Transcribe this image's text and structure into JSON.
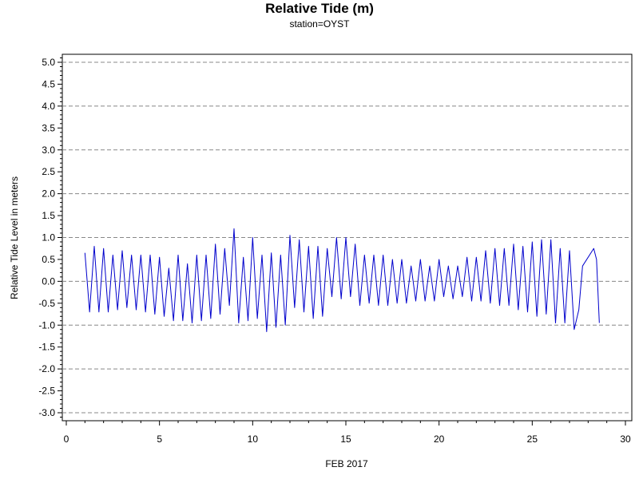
{
  "chart_data": {
    "type": "line",
    "title": "Relative Tide (m)",
    "subtitle": "station=OYST",
    "xlabel": "FEB 2017",
    "ylabel": "Relative Tide Level in meters",
    "xlim": [
      0,
      30
    ],
    "ylim": [
      -3.2,
      5.2
    ],
    "x_ticks": [
      0,
      5,
      10,
      15,
      20,
      25,
      30
    ],
    "y_ticks": [
      5.0,
      4.5,
      4.0,
      3.5,
      3.0,
      2.5,
      2.0,
      1.5,
      1.0,
      0.5,
      0.0,
      -0.5,
      -1.0,
      -1.5,
      -2.0,
      -2.5,
      -3.0
    ],
    "y_tick_labels": [
      "5.0",
      "4.5",
      "4.0",
      "3.5",
      "3.0",
      "2.5",
      "2.0",
      "1.5",
      "1.0",
      "0.5",
      "0.0",
      "-0.5",
      "-1.0",
      "-1.5",
      "-2.0",
      "-2.5",
      "-3.0"
    ],
    "y_gridlines": [
      5.0,
      4.0,
      3.0,
      2.0,
      1.0,
      0.0,
      -1.0,
      -2.0,
      -3.0
    ],
    "grid": "dashed horizontal at integer levels",
    "line_color": "#0000cc",
    "series": [
      {
        "values_x": [
          1.0,
          1.25,
          1.5,
          1.75,
          2.0,
          2.25,
          2.5,
          2.75,
          3.0,
          3.25,
          3.5,
          3.75,
          4.0,
          4.25,
          4.5,
          4.75,
          5.0,
          5.25,
          5.5,
          5.75,
          6.0,
          6.25,
          6.5,
          6.75,
          7.0,
          7.25,
          7.5,
          7.75,
          8.0,
          8.25,
          8.5,
          8.75,
          9.0,
          9.25,
          9.5,
          9.75,
          10.0,
          10.25,
          10.5,
          10.75,
          11.0,
          11.25,
          11.5,
          11.75,
          12.0,
          12.25,
          12.5,
          12.75,
          13.0,
          13.25,
          13.5,
          13.75,
          14.0,
          14.25,
          14.5,
          14.75,
          15.0,
          15.25,
          15.5,
          15.75,
          16.0,
          16.25,
          16.5,
          16.75,
          17.0,
          17.25,
          17.5,
          17.75,
          18.0,
          18.25,
          18.5,
          18.75,
          19.0,
          19.25,
          19.5,
          19.75,
          20.0,
          20.25,
          20.5,
          20.75,
          21.0,
          21.25,
          21.5,
          21.75,
          22.0,
          22.25,
          22.5,
          22.75,
          23.0,
          23.25,
          23.5,
          23.75,
          24.0,
          24.25,
          24.5,
          24.75,
          25.0,
          25.25,
          25.5,
          25.75,
          26.0,
          26.25,
          26.5,
          26.75,
          27.0,
          27.25,
          27.5,
          27.7,
          28.3,
          28.45,
          28.6
        ],
        "values_y": [
          0.65,
          -0.7,
          0.8,
          -0.7,
          0.75,
          -0.7,
          0.6,
          -0.65,
          0.7,
          -0.6,
          0.6,
          -0.65,
          0.6,
          -0.7,
          0.6,
          -0.75,
          0.55,
          -0.8,
          0.3,
          -0.9,
          0.6,
          -0.9,
          0.4,
          -0.95,
          0.6,
          -0.9,
          0.6,
          -0.85,
          0.85,
          -0.75,
          0.75,
          -0.55,
          1.2,
          -0.95,
          0.55,
          -0.9,
          1.0,
          -0.85,
          0.6,
          -1.15,
          0.65,
          -1.05,
          0.6,
          -1.0,
          1.05,
          -0.6,
          0.95,
          -0.7,
          0.8,
          -0.85,
          0.8,
          -0.8,
          0.75,
          -0.35,
          1.0,
          -0.4,
          1.0,
          -0.35,
          0.85,
          -0.55,
          0.6,
          -0.5,
          0.6,
          -0.55,
          0.6,
          -0.55,
          0.5,
          -0.5,
          0.5,
          -0.5,
          0.35,
          -0.45,
          0.5,
          -0.45,
          0.35,
          -0.45,
          0.5,
          -0.35,
          0.35,
          -0.4,
          0.35,
          -0.35,
          0.55,
          -0.45,
          0.55,
          -0.45,
          0.7,
          -0.5,
          0.75,
          -0.55,
          0.75,
          -0.55,
          0.85,
          -0.65,
          0.8,
          -0.7,
          0.9,
          -0.8,
          0.95,
          -0.75,
          0.95,
          -0.95,
          0.75,
          -0.95,
          0.7,
          -1.1,
          -0.65,
          0.35,
          0.75,
          0.5,
          -0.95
        ]
      }
    ]
  }
}
